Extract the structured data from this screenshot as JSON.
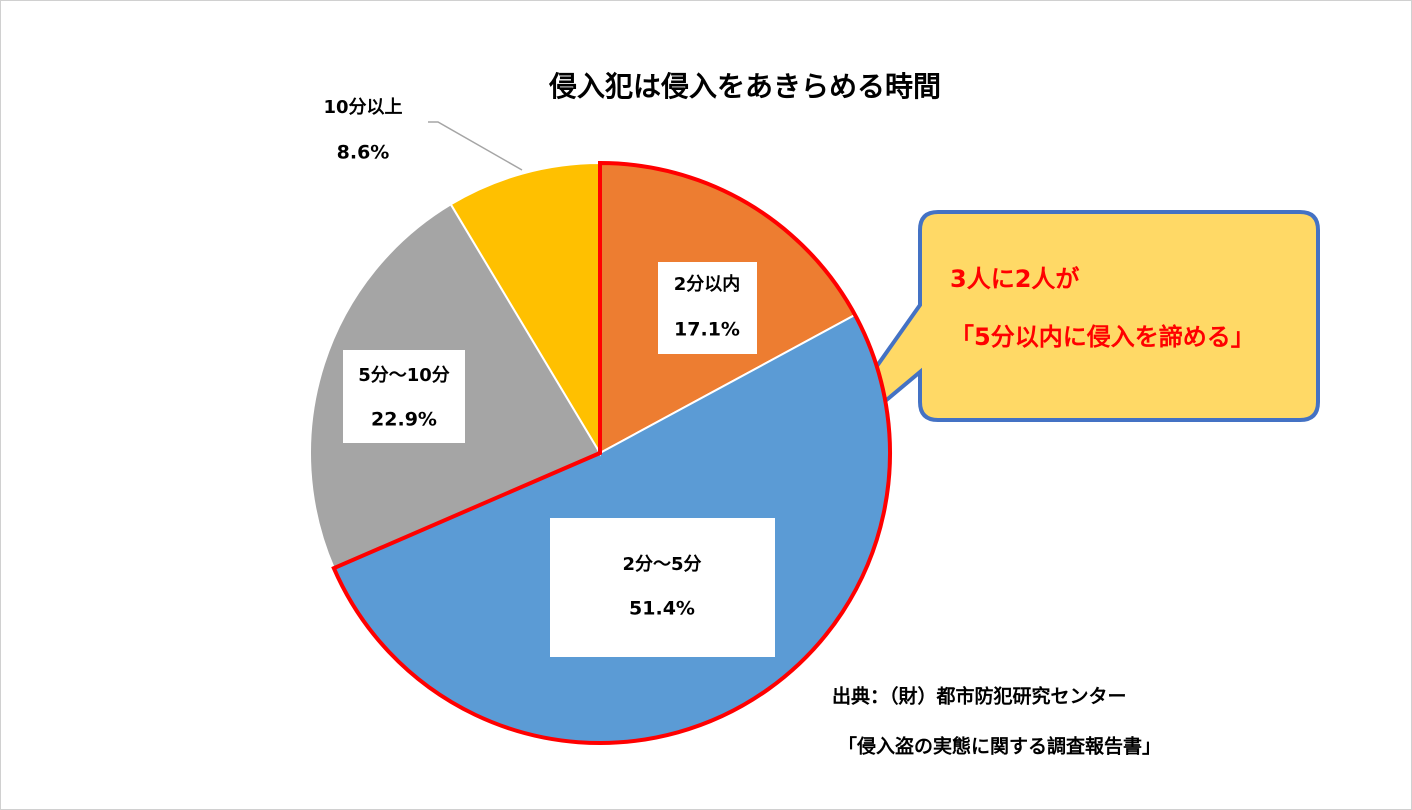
{
  "chart_data": {
    "type": "pie",
    "title": "侵入犯は侵入をあきらめる時間",
    "categories": [
      "2分以内",
      "2分〜5分",
      "5分〜10分",
      "10分以上"
    ],
    "values": [
      17.1,
      51.4,
      22.9,
      8.6
    ],
    "value_labels": [
      "17.1%",
      "51.4%",
      "22.9%",
      "8.6%"
    ],
    "colors": [
      "#ed7d31",
      "#5b9bd5",
      "#a5a5a5",
      "#ffc000"
    ],
    "annotations": [
      "3人に2人が",
      "「5分以内に侵入を諦める」"
    ],
    "source": [
      "出典：（財）都市防犯研究センター",
      "「侵入盗の実態に関する調査報告書」"
    ]
  }
}
